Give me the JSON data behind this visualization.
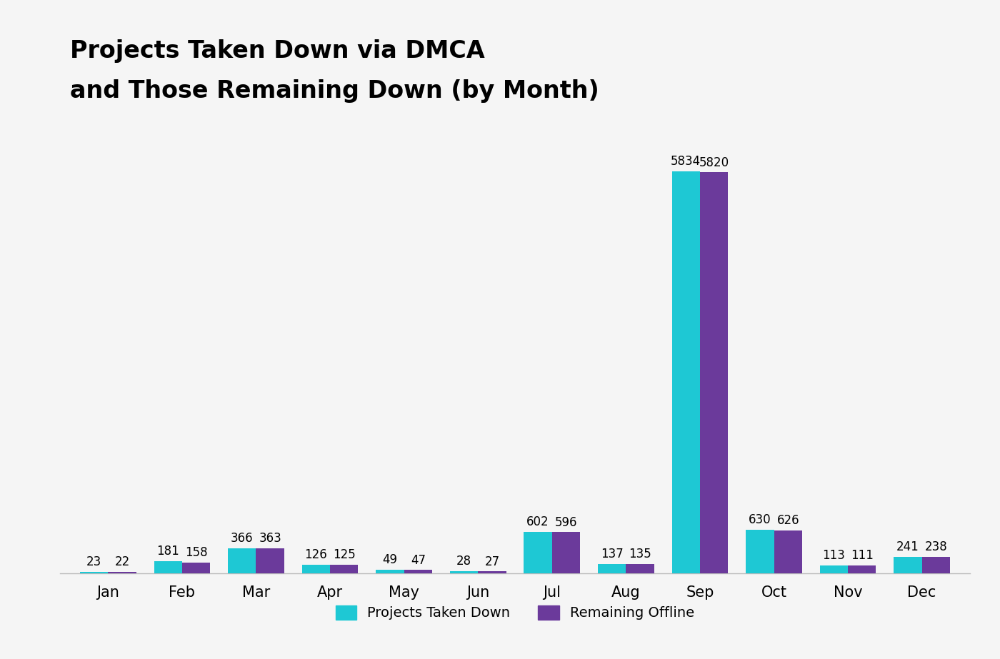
{
  "title_line1": "Projects Taken Down via DMCA",
  "title_line2": "and Those Remaining Down (by Month)",
  "months": [
    "Jan",
    "Feb",
    "Mar",
    "Apr",
    "May",
    "Jun",
    "Jul",
    "Aug",
    "Sep",
    "Oct",
    "Nov",
    "Dec"
  ],
  "taken_down": [
    23,
    181,
    366,
    126,
    49,
    28,
    602,
    137,
    5834,
    630,
    113,
    241
  ],
  "remaining_offline": [
    22,
    158,
    363,
    125,
    47,
    27,
    596,
    135,
    5820,
    626,
    111,
    238
  ],
  "bar_color_taken": "#1EC8D4",
  "bar_color_remaining": "#6B3A9B",
  "background_color": "#F5F5F5",
  "title_fontsize": 24,
  "tick_fontsize": 15,
  "label_fontsize": 12,
  "legend_fontsize": 14,
  "bar_width": 0.38,
  "ylim": [
    0,
    6600
  ]
}
